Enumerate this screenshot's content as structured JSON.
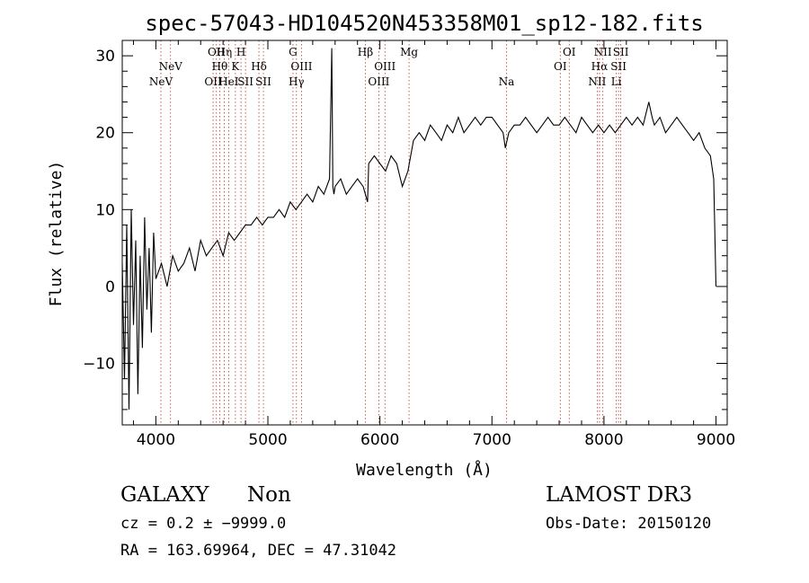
{
  "chart_data": {
    "type": "line",
    "title": "spec-57043-HD104520N453358M01_sp12-182.fits",
    "xlabel": "Wavelength (Å)",
    "ylabel": "Flux (relative)",
    "xlim": [
      3700,
      9100
    ],
    "ylim": [
      -18,
      32
    ],
    "xticks": [
      {
        "v": 4000,
        "label": "4000"
      },
      {
        "v": 5000,
        "label": "5000"
      },
      {
        "v": 6000,
        "label": "6000"
      },
      {
        "v": 7000,
        "label": "7000"
      },
      {
        "v": 8000,
        "label": "8000"
      },
      {
        "v": 9000,
        "label": "9000"
      }
    ],
    "yticks": [
      {
        "v": -10,
        "label": "−10"
      },
      {
        "v": 0,
        "label": "0"
      },
      {
        "v": 10,
        "label": "10"
      },
      {
        "v": 20,
        "label": "20"
      },
      {
        "v": 30,
        "label": "30"
      }
    ],
    "series": [
      {
        "name": "flux",
        "x": [
          3700,
          3720,
          3740,
          3760,
          3780,
          3800,
          3820,
          3840,
          3860,
          3880,
          3900,
          3920,
          3940,
          3960,
          3980,
          4000,
          4050,
          4100,
          4150,
          4200,
          4250,
          4300,
          4350,
          4400,
          4450,
          4500,
          4550,
          4600,
          4650,
          4700,
          4750,
          4800,
          4850,
          4900,
          4950,
          5000,
          5050,
          5100,
          5150,
          5200,
          5250,
          5300,
          5350,
          5400,
          5450,
          5500,
          5550,
          5570,
          5580,
          5590,
          5600,
          5650,
          5700,
          5750,
          5800,
          5850,
          5890,
          5900,
          5950,
          6000,
          6050,
          6100,
          6150,
          6200,
          6250,
          6300,
          6350,
          6400,
          6450,
          6500,
          6550,
          6600,
          6650,
          6700,
          6750,
          6800,
          6850,
          6900,
          6950,
          7000,
          7050,
          7100,
          7120,
          7150,
          7200,
          7250,
          7300,
          7350,
          7400,
          7450,
          7500,
          7550,
          7600,
          7650,
          7700,
          7750,
          7800,
          7850,
          7900,
          7950,
          8000,
          8050,
          8100,
          8150,
          8200,
          8250,
          8300,
          8350,
          8400,
          8430,
          8450,
          8500,
          8550,
          8600,
          8650,
          8700,
          8750,
          8800,
          8850,
          8900,
          8950,
          8980,
          9000
        ],
        "y": [
          3,
          -12,
          8,
          -16,
          10,
          -5,
          6,
          -14,
          4,
          -8,
          9,
          -3,
          5,
          -6,
          7,
          1,
          3,
          0,
          4,
          2,
          3,
          5,
          2,
          6,
          4,
          5,
          6,
          4,
          7,
          6,
          7,
          8,
          8,
          9,
          8,
          9,
          9,
          10,
          9,
          11,
          10,
          11,
          12,
          11,
          13,
          12,
          14,
          31,
          13,
          12,
          13,
          14,
          12,
          13,
          14,
          13,
          11,
          16,
          17,
          16,
          15,
          17,
          16,
          13,
          15,
          19,
          20,
          19,
          21,
          20,
          19,
          21,
          20,
          22,
          20,
          21,
          22,
          21,
          22,
          22,
          21,
          20,
          18,
          20,
          21,
          21,
          22,
          21,
          20,
          21,
          22,
          21,
          21,
          22,
          21,
          20,
          22,
          21,
          20,
          21,
          20,
          21,
          20,
          21,
          22,
          21,
          22,
          21,
          24,
          22,
          21,
          22,
          20,
          21,
          22,
          21,
          20,
          19,
          20,
          18,
          17,
          14,
          0
        ]
      }
    ],
    "lines": [
      {
        "x": 4045,
        "label": "NeV",
        "row": 3
      },
      {
        "x": 4131,
        "label": "NeV",
        "row": 2
      },
      {
        "x": 4511,
        "label": "OII",
        "row": 3
      },
      {
        "x": 4540,
        "label": "OII",
        "row": 1
      },
      {
        "x": 4570,
        "label": "Hθ",
        "row": 2
      },
      {
        "x": 4610,
        "label": "Hη",
        "row": 1
      },
      {
        "x": 4650,
        "label": "HeI",
        "row": 3
      },
      {
        "x": 4710,
        "label": "K",
        "row": 2
      },
      {
        "x": 4760,
        "label": "H",
        "row": 1
      },
      {
        "x": 4800,
        "label": "SII",
        "row": 3
      },
      {
        "x": 4920,
        "label": "Hδ",
        "row": 2
      },
      {
        "x": 4960,
        "label": "SII",
        "row": 3
      },
      {
        "x": 5224,
        "label": "G",
        "row": 1
      },
      {
        "x": 5255,
        "label": "Hγ",
        "row": 3
      },
      {
        "x": 5300,
        "label": "OIII",
        "row": 2
      },
      {
        "x": 5870,
        "label": "Hβ",
        "row": 1
      },
      {
        "x": 5990,
        "label": "OIII",
        "row": 3
      },
      {
        "x": 6045,
        "label": "OIII",
        "row": 2
      },
      {
        "x": 6260,
        "label": "Mg",
        "row": 1
      },
      {
        "x": 7130,
        "label": "Na",
        "row": 3
      },
      {
        "x": 7610,
        "label": "OI",
        "row": 2
      },
      {
        "x": 7690,
        "label": "OI",
        "row": 1
      },
      {
        "x": 7940,
        "label": "NII",
        "row": 3
      },
      {
        "x": 7960,
        "label": "Hα",
        "row": 2
      },
      {
        "x": 7990,
        "label": "NII",
        "row": 1
      },
      {
        "x": 8110,
        "label": "Li",
        "row": 3
      },
      {
        "x": 8130,
        "label": "SII",
        "row": 2
      },
      {
        "x": 8150,
        "label": "SII",
        "row": 1
      }
    ]
  },
  "info": {
    "object_class": "GALAXY",
    "subclass": "Non",
    "survey": "LAMOST DR3",
    "cz": "cz = 0.2 ± −9999.0",
    "obs_date": "Obs-Date: 20150120",
    "coords": "RA = 163.69964, DEC =  47.31042"
  }
}
